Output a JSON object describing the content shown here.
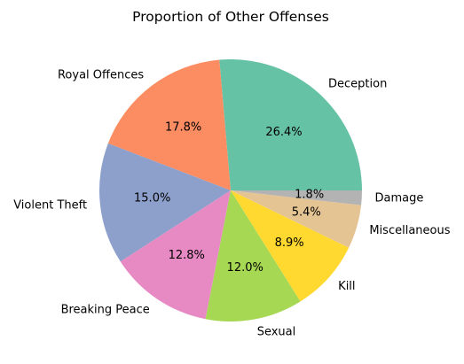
{
  "chart_data": {
    "type": "pie",
    "title": "Proportion of Other Offenses",
    "categories": [
      "Deception",
      "Royal Offences",
      "Violent Theft",
      "Breaking Peace",
      "Sexual",
      "Kill",
      "Miscellaneous",
      "Damage"
    ],
    "values": [
      26.4,
      17.8,
      15.0,
      12.8,
      12.0,
      8.9,
      5.4,
      1.8
    ],
    "labels": [
      "26.4%",
      "17.8%",
      "15.0%",
      "12.8%",
      "12.0%",
      "8.9%",
      "5.4%",
      "1.8%"
    ],
    "colors": [
      "#66c2a5",
      "#fc8d62",
      "#8da0cb",
      "#e78ac3",
      "#a6d854",
      "#ffd92f",
      "#e5c494",
      "#b3b3b3"
    ],
    "start_angle_deg": 0,
    "direction": "counterclockwise",
    "legend": "none"
  }
}
